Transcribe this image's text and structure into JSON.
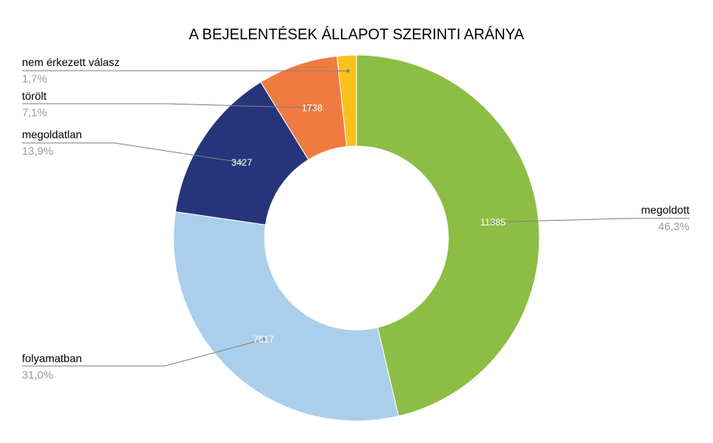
{
  "chart_data": {
    "type": "pie",
    "title": "A BEJELENTÉSEK ÁLLAPOT SZERINTI ARÁNYA",
    "donut": true,
    "slices": [
      {
        "label": "megoldott",
        "value": 11385,
        "percent_label": "46,3%",
        "color": "#8cbd45"
      },
      {
        "label": "folyamatban",
        "value": 7617,
        "percent_label": "31,0%",
        "color": "#abcfea"
      },
      {
        "label": "megoldatlan",
        "value": 3427,
        "percent_label": "13,9%",
        "color": "#26357a"
      },
      {
        "label": "törölt",
        "value": 1738,
        "percent_label": "7,1%",
        "color": "#f07b42"
      },
      {
        "label": "nem érkezett válasz",
        "value": 418,
        "percent_label": "1,7%",
        "color": "#fac11d"
      }
    ]
  }
}
